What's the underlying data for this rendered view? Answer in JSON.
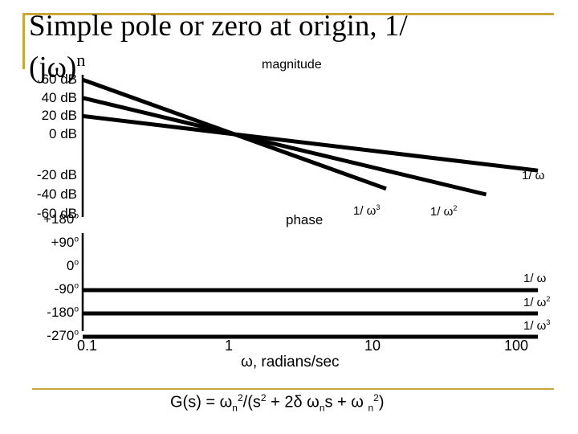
{
  "colors": {
    "accent": "#c8a83a",
    "ink": "#000000"
  },
  "slide": {
    "title_line1": "Simple pole or zero at origin, 1/",
    "title_line2": "(jω)",
    "title_sup": "n",
    "formula": {
      "lhs": "G(s) = ω",
      "sub1": "n",
      "sup1": "2",
      "mid1": "/(s",
      "sup2": "2",
      "mid2": " + 2δ ω",
      "sub2": "n",
      "mid3": "s + ω ",
      "sub3": "n",
      "sup3": "2",
      "end": ")"
    }
  },
  "chart_data": [
    {
      "type": "line",
      "title": "magnitude",
      "ylabels": [
        "60 dB",
        "40 dB",
        "20 dB",
        "0 dB",
        "-20 dB",
        "-40 dB",
        "-60 dB"
      ],
      "yticks": [
        60,
        40,
        20,
        0,
        -20,
        -40,
        -60
      ],
      "ylim": [
        -60,
        60
      ],
      "xscale": "log",
      "series": [
        {
          "name": "1/ ω",
          "points": [
            [
              0.1,
              20
            ],
            [
              100,
              -40
            ]
          ]
        },
        {
          "name": "1/ ω",
          "name_sup": "2",
          "points": [
            [
              0.1,
              40
            ],
            [
              100,
              -80
            ]
          ]
        },
        {
          "name": "1/ ω",
          "name_sup": "3",
          "points": [
            [
              0.1,
              60
            ],
            [
              10,
              -60
            ]
          ]
        }
      ]
    },
    {
      "type": "line",
      "title": "phase",
      "ylabels": [
        "+180o",
        "+90o",
        "0o",
        "-90o",
        "-180o",
        "-270o"
      ],
      "ylabel_parts": [
        [
          "+180",
          "o"
        ],
        [
          "+90",
          "o"
        ],
        [
          "0",
          "o"
        ],
        [
          "-90",
          "o"
        ],
        [
          "-180",
          "o"
        ],
        [
          "-270",
          "o"
        ]
      ],
      "yticks": [
        180,
        90,
        0,
        -90,
        -180,
        -270
      ],
      "ylim": [
        -270,
        180
      ],
      "xscale": "log",
      "series": [
        {
          "name": "1/ ω",
          "value": -90
        },
        {
          "name": "1/ ω",
          "name_sup": "2",
          "value": -180
        },
        {
          "name": "1/ ω",
          "name_sup": "3",
          "value": -270
        }
      ],
      "x_ticks": [
        "0.1",
        "1",
        "10",
        "100"
      ],
      "x_values": [
        0.1,
        1,
        10,
        100
      ],
      "xlabel": "ω, radians/sec"
    }
  ]
}
